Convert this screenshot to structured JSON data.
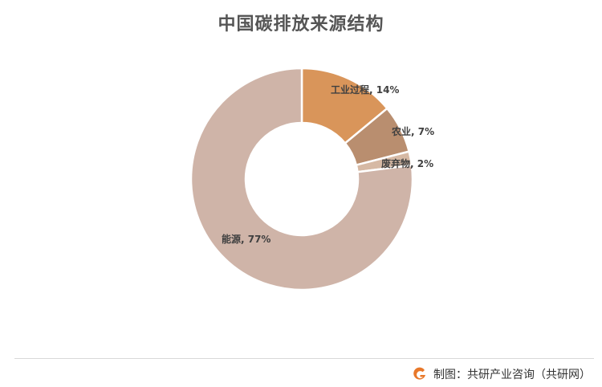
{
  "chart_data": {
    "type": "pie",
    "title": "中国碳排放来源结构",
    "donut": true,
    "categories": [
      "工业过程",
      "农业",
      "废弃物",
      "能源"
    ],
    "values": [
      14,
      7,
      2,
      77
    ],
    "labels": [
      "工业过程, 14%",
      "农业, 7%",
      "废弃物, 2%",
      "能源, 77%"
    ],
    "colors": [
      "#d9955a",
      "#b98e6f",
      "#d6b9a4",
      "#cfb4a8"
    ],
    "legend": "none"
  },
  "footer": {
    "credit": "制图：共研产业咨询（共研网）",
    "logo": "g-logo-icon",
    "logo_color": "#e8782a"
  }
}
